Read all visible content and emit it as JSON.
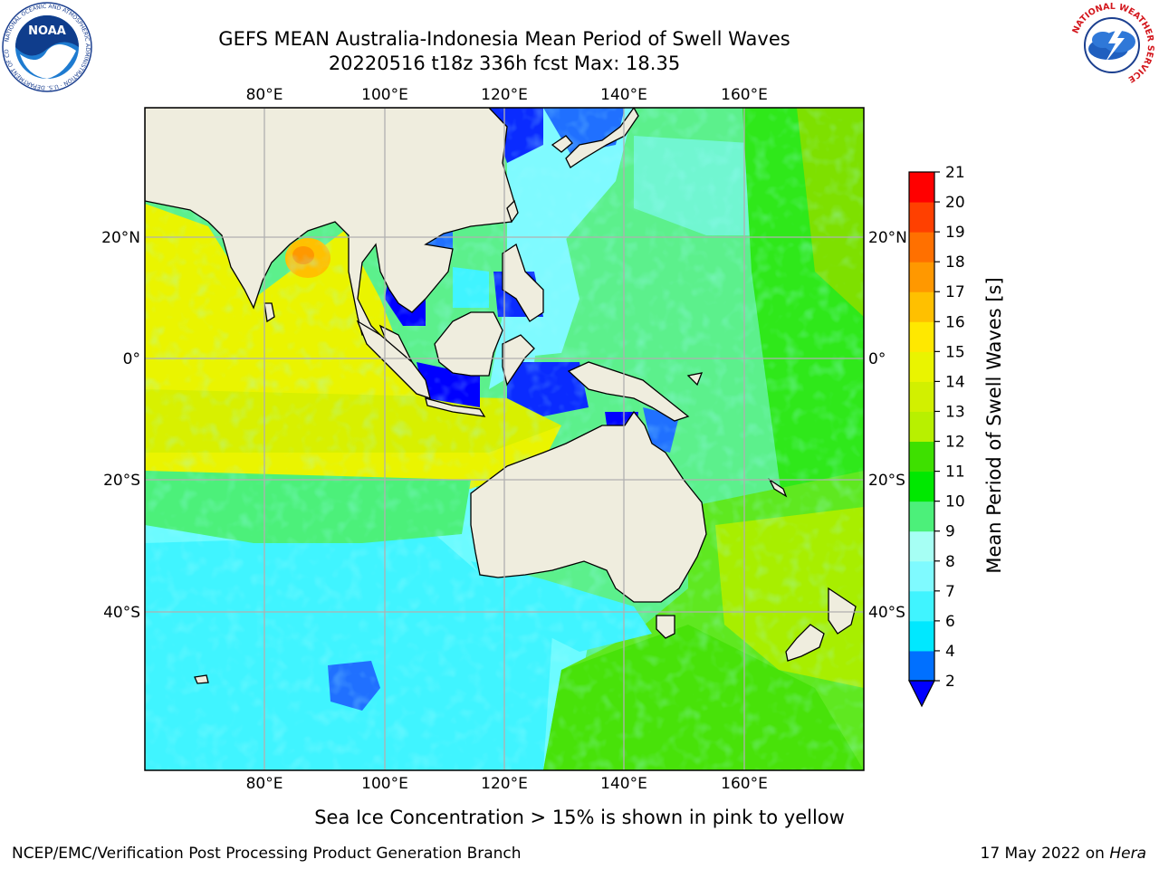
{
  "title_line1": "GEFS MEAN Australia-Indonesia Mean Period of Swell Waves",
  "title_line2": "20220516 t18z 336h fcst   Max: 18.35",
  "map": {
    "lon_ticks": [
      "80°E",
      "100°E",
      "120°E",
      "140°E",
      "160°E"
    ],
    "lat_ticks": [
      "20°N",
      "0°",
      "20°S",
      "40°S"
    ],
    "grid": true,
    "land_color": "#efedde",
    "extent": {
      "lon": [
        60,
        180
      ],
      "lat": [
        -60,
        40
      ]
    }
  },
  "colorbar": {
    "label": "Mean Period of Swell Waves [s]",
    "tick_labels": [
      "2",
      "4",
      "6",
      "7",
      "8",
      "9",
      "10",
      "11",
      "12",
      "13",
      "14",
      "15",
      "16",
      "17",
      "18",
      "19",
      "20",
      "21"
    ],
    "colors": [
      "#0070ff",
      "#00e8ff",
      "#40f4ff",
      "#7ffaff",
      "#a6fff4",
      "#4cf07a",
      "#00e800",
      "#3ee000",
      "#b8f000",
      "#d2f000",
      "#eaf400",
      "#ffe800",
      "#ffc000",
      "#ff9800",
      "#ff7000",
      "#ff4000",
      "#ff0000"
    ],
    "under_color": "#0000ff"
  },
  "caption": "Sea Ice Concentration > 15% is shown in pink to yellow",
  "footer_left": "NCEP/EMC/Verification Post Processing Product Generation Branch",
  "footer_right_prefix": "17 May 2022 on ",
  "footer_right_host": "Hera",
  "logos": {
    "noaa": {
      "center": "NOAA",
      "ring": "NATIONAL OCEANIC AND ATMOSPHERIC ADMINISTRATION · U.S. DEPARTMENT OF COMMERCE"
    },
    "nws": {
      "ring": "NATIONAL WEATHER SERVICE"
    }
  }
}
